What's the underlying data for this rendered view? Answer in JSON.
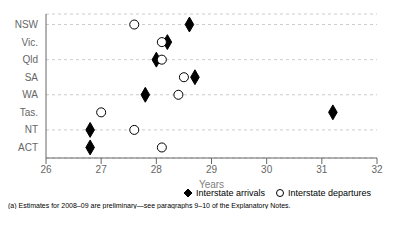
{
  "chart_data": {
    "type": "dot",
    "categories": [
      "NSW",
      "Vic.",
      "Qld",
      "SA",
      "WA",
      "Tas.",
      "NT",
      "ACT"
    ],
    "series": [
      {
        "name": "Interstate arrivals",
        "color": "#000000",
        "marker": "diamond",
        "values": [
          28.6,
          28.2,
          28.0,
          28.7,
          27.8,
          31.2,
          26.8,
          26.8
        ]
      },
      {
        "name": "Interstate departures",
        "color": "#000000",
        "marker": "circle",
        "values": [
          27.6,
          28.1,
          28.1,
          28.5,
          28.4,
          27.0,
          27.6,
          28.1
        ]
      }
    ],
    "xlim": [
      26,
      32
    ],
    "xticks": [
      26,
      27,
      28,
      29,
      30,
      31,
      32
    ],
    "xlabel": "Years",
    "annotations": [
      "(a) Estimates for 2008–09 are preliminary—see paragraphs 9–10 of the Explanatory Notes."
    ],
    "grid": true,
    "legend": "lower right"
  }
}
